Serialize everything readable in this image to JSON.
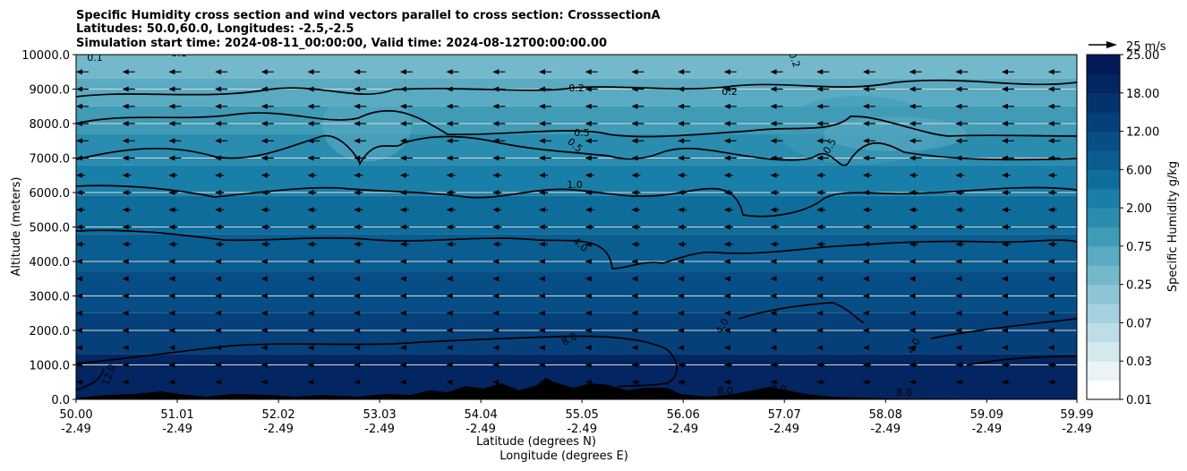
{
  "chart_data": {
    "type": "contourf-cross-section",
    "title_lines": [
      "Specific Humidity cross section and wind vectors parallel to cross section: CrosssectionA",
      "Latitudes: 50.0,60.0, Longitudes: -2.5,-2.5",
      "Simulation start time: 2024-08-11_00:00:00, Valid time: 2024-08-12T00:00:00.00"
    ],
    "ylabel": "Altitude (meters)",
    "xlabel_lines": [
      "Latitude (degrees N)",
      "Longitude (degrees E)"
    ],
    "ylim": [
      0,
      10000
    ],
    "xlim": [
      50.0,
      59.99
    ],
    "y_ticks": [
      0,
      1000,
      2000,
      3000,
      4000,
      5000,
      6000,
      7000,
      8000,
      9000,
      10000
    ],
    "y_tick_labels": [
      "0.0",
      "1000.0",
      "2000.0",
      "3000.0",
      "4000.0",
      "5000.0",
      "6000.0",
      "7000.0",
      "8000.0",
      "9000.0",
      "10000.0"
    ],
    "x_ticks": [
      50.0,
      51.01,
      52.02,
      53.03,
      54.04,
      55.05,
      56.06,
      57.07,
      58.08,
      59.09,
      59.99
    ],
    "x_tick_labels_lat": [
      "50.00",
      "51.01",
      "52.02",
      "53.03",
      "54.04",
      "55.05",
      "56.06",
      "57.07",
      "58.08",
      "59.09",
      "59.99"
    ],
    "x_tick_labels_lon": [
      "-2.49",
      "-2.49",
      "-2.49",
      "-2.49",
      "-2.49",
      "-2.49",
      "-2.49",
      "-2.49",
      "-2.49",
      "-2.49",
      "-2.49"
    ],
    "grid": "horizontal",
    "colorbar": {
      "label": "Specific Humidity g/kg",
      "levels": [
        0.01,
        0.02,
        0.03,
        0.05,
        0.07,
        0.1,
        0.25,
        0.5,
        0.75,
        1.0,
        2.0,
        3.0,
        6.0,
        9.0,
        12.0,
        15.0,
        18.0,
        21.0,
        25.0
      ],
      "tick_labels": [
        "0.01",
        "0.03",
        "0.07",
        "0.25",
        "0.75",
        "2.00",
        "6.00",
        "12.00",
        "18.00",
        "25.00"
      ],
      "colors": [
        "#ffffff",
        "#eaf3f6",
        "#d4e8ee",
        "#bedde7",
        "#a6d1df",
        "#8ec5d6",
        "#74b8cc",
        "#5aaac2",
        "#3f9bb6",
        "#2a8db0",
        "#1a7fa8",
        "#0f6d9c",
        "#0a5d91",
        "#084e86",
        "#06407a",
        "#04326d",
        "#032561",
        "#021a56"
      ]
    },
    "contour_levels": [
      0.1,
      0.2,
      0.5,
      1.0,
      4.0,
      8.0,
      12.0
    ],
    "contour_labels": [
      "0.1",
      "0.1",
      "0.2",
      "0.2",
      "0.2",
      "0.5",
      "0.5",
      "0.5",
      "1.0",
      "4.0",
      "4.0",
      "4.0",
      "8.0",
      "8.0",
      "8.0",
      "8.0",
      "12.0"
    ],
    "wind_vectors": {
      "direction": "toward decreasing latitude",
      "reference_label": "25 m/s",
      "reference_speed": 25
    }
  }
}
